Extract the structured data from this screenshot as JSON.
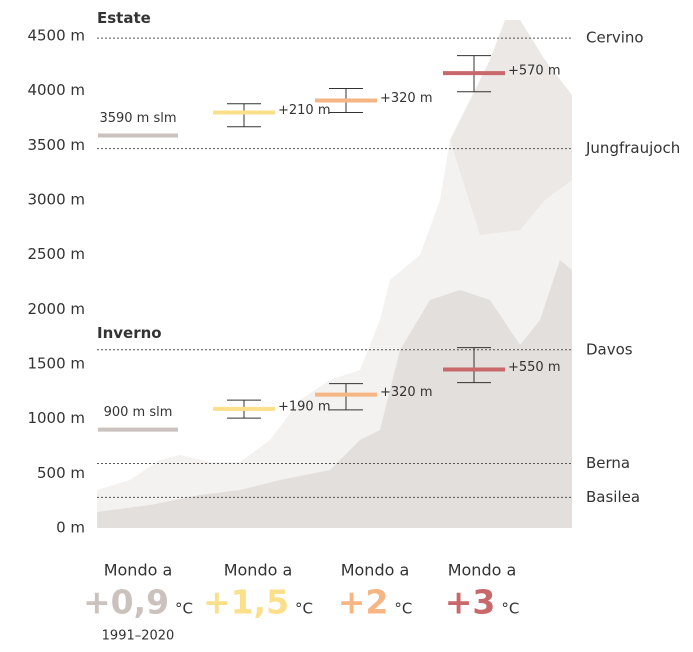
{
  "chart_data": {
    "type": "range",
    "ylim": [
      0,
      4500
    ],
    "yticks": [
      {
        "value": 0,
        "label": "0 m"
      },
      {
        "value": 500,
        "label": "500 m"
      },
      {
        "value": 1000,
        "label": "1000 m"
      },
      {
        "value": 1500,
        "label": "1500 m"
      },
      {
        "value": 2000,
        "label": "2000 m"
      },
      {
        "value": 2500,
        "label": "2500 m"
      },
      {
        "value": 3000,
        "label": "3000 m"
      },
      {
        "value": 3500,
        "label": "3500 m"
      },
      {
        "value": 4000,
        "label": "4000 m"
      },
      {
        "value": 4500,
        "label": "4500 m"
      }
    ],
    "references": [
      {
        "name": "Cervino",
        "value": 4480
      },
      {
        "name": "Jungfraujoch",
        "value": 3470
      },
      {
        "name": "Davos",
        "value": 1630
      },
      {
        "name": "Berna",
        "value": 590
      },
      {
        "name": "Basilea",
        "value": 280
      }
    ],
    "groups": [
      {
        "title": "Estate",
        "baseline": 3590,
        "baseline_label": "3590 m slm",
        "changes": [
          210,
          320,
          570
        ],
        "change_labels": [
          "+210 m",
          "+320 m",
          "+570 m"
        ],
        "ranges": [
          [
            3670,
            3880
          ],
          [
            3800,
            4020
          ],
          [
            3990,
            4320
          ]
        ]
      },
      {
        "title": "Inverno",
        "baseline": 900,
        "baseline_label": "900 m slm",
        "changes": [
          190,
          320,
          550
        ],
        "change_labels": [
          "+190 m",
          "+320 m",
          "+550 m"
        ],
        "ranges": [
          [
            1005,
            1170
          ],
          [
            1080,
            1320
          ],
          [
            1330,
            1650
          ]
        ]
      }
    ],
    "scenarios": [
      {
        "prefix": "Mondo a",
        "value": "+0,9",
        "unit": "°C",
        "color": "#cbc1bd",
        "note": "1991–2020"
      },
      {
        "prefix": "Mondo a",
        "value": "+1,5",
        "unit": "°C",
        "color": "#fbdf8a"
      },
      {
        "prefix": "Mondo a",
        "value": "+2",
        "unit": "°C",
        "color": "#f5b684"
      },
      {
        "prefix": "Mondo a",
        "value": "+3",
        "unit": "°C",
        "color": "#c8686a"
      }
    ]
  }
}
